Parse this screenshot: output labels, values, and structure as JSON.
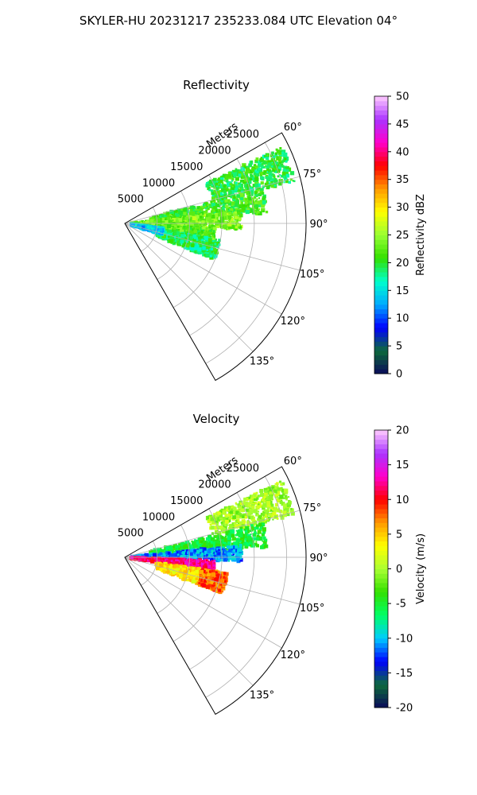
{
  "figure": {
    "suptitle": "SKYLER-HU  20231217  235233.084 UTC Elevation 04°"
  },
  "chart_data": [
    {
      "type": "heatmap",
      "projection": "polar-sector",
      "title": "Reflectivity",
      "radial_label": "Meters",
      "radial_ticks": [
        "5000",
        "10000",
        "15000",
        "20000",
        "25000"
      ],
      "radial_range": [
        0,
        28000
      ],
      "azimuth_range_deg": [
        60,
        150
      ],
      "azimuth_ticks": [
        "60°",
        "75°",
        "90°",
        "105°",
        "120°",
        "135°"
      ],
      "grid": true,
      "colorbar": {
        "label": "Reflectivity dBZ",
        "range": [
          0,
          50
        ],
        "ticks": [
          "0",
          "5",
          "10",
          "15",
          "20",
          "25",
          "30",
          "35",
          "40",
          "45",
          "50"
        ],
        "stops": [
          "#0a0a5a",
          "#0d6b3b",
          "#0000ff",
          "#00aaff",
          "#00ffcc",
          "#33e000",
          "#99ff33",
          "#ffff00",
          "#ff9900",
          "#ff0000",
          "#ff00cc",
          "#aa33ff",
          "#ffccff"
        ]
      },
      "echo_regions": [
        {
          "az": [
            64,
            76
          ],
          "r": [
            14000,
            27000
          ],
          "value": 20
        },
        {
          "az": [
            76,
            86
          ],
          "r": [
            4000,
            22000
          ],
          "value": 21
        },
        {
          "az": [
            84,
            93
          ],
          "r": [
            1000,
            18000
          ],
          "value": 24
        },
        {
          "az": [
            93,
            101
          ],
          "r": [
            1000,
            14000
          ],
          "value": 22
        },
        {
          "az": [
            100,
            112
          ],
          "r": [
            5000,
            15000
          ],
          "value": 19
        },
        {
          "az": [
            97,
            106
          ],
          "r": [
            1000,
            6000
          ],
          "value": 14
        }
      ]
    },
    {
      "type": "heatmap",
      "projection": "polar-sector",
      "title": "Velocity",
      "radial_label": "Meters",
      "radial_ticks": [
        "5000",
        "10000",
        "15000",
        "20000",
        "25000"
      ],
      "radial_range": [
        0,
        28000
      ],
      "azimuth_range_deg": [
        60,
        150
      ],
      "azimuth_ticks": [
        "60°",
        "75°",
        "90°",
        "105°",
        "120°",
        "135°"
      ],
      "grid": true,
      "colorbar": {
        "label": "Velocity (m/s)",
        "range": [
          -20,
          20
        ],
        "ticks": [
          "-20",
          "-15",
          "-10",
          "-5",
          "0",
          "5",
          "10",
          "15",
          "20"
        ],
        "stops": [
          "#0a0a5a",
          "#0d6b3b",
          "#0000ff",
          "#00ccff",
          "#00ff66",
          "#33e000",
          "#aaff33",
          "#ffff00",
          "#ff9900",
          "#ff0000",
          "#ff00cc",
          "#aa33ff",
          "#ffccff"
        ]
      },
      "echo_regions": [
        {
          "az": [
            64,
            76
          ],
          "r": [
            14000,
            27000
          ],
          "value": 0
        },
        {
          "az": [
            76,
            86
          ],
          "r": [
            4000,
            22000
          ],
          "value": -5
        },
        {
          "az": [
            84,
            92
          ],
          "r": [
            1000,
            18000
          ],
          "value": -11
        },
        {
          "az": [
            92,
            99
          ],
          "r": [
            1000,
            14000
          ],
          "value": 12
        },
        {
          "az": [
            99,
            110
          ],
          "r": [
            5000,
            15000
          ],
          "value": 4
        },
        {
          "az": [
            99,
            110
          ],
          "r": [
            12000,
            16000
          ],
          "value": 8
        }
      ]
    }
  ]
}
